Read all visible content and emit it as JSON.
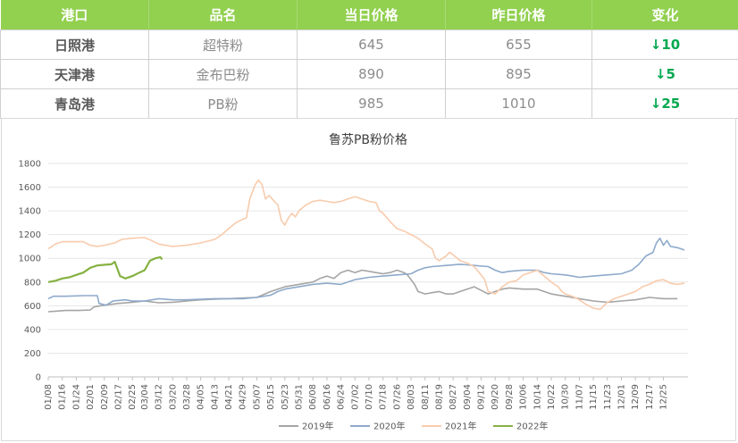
{
  "table": {
    "headers": [
      "港口",
      "品名",
      "当日价格",
      "昨日价格",
      "变化"
    ],
    "rows": [
      {
        "port": "日照港",
        "product": "超特粉",
        "today": "645",
        "yesterday": "655",
        "change": "↓10"
      },
      {
        "port": "天津港",
        "product": "金布巴粉",
        "today": "890",
        "yesterday": "895",
        "change": "↓5"
      },
      {
        "port": "青岛港",
        "product": "PB粉",
        "today": "985",
        "yesterday": "1010",
        "change": "↓25"
      }
    ]
  },
  "chart_data": {
    "type": "line",
    "title": "鲁苏PB粉价格",
    "ylim": [
      0,
      1800
    ],
    "yticks": [
      0,
      200,
      400,
      600,
      800,
      1000,
      1200,
      1400,
      1600,
      1800
    ],
    "xlim": [
      0,
      365
    ],
    "xticks": [
      {
        "label": "01/08",
        "x": 0
      },
      {
        "label": "01/16",
        "x": 8
      },
      {
        "label": "01/24",
        "x": 16
      },
      {
        "label": "02/01",
        "x": 24
      },
      {
        "label": "02/09",
        "x": 32
      },
      {
        "label": "02/17",
        "x": 40
      },
      {
        "label": "02/25",
        "x": 48
      },
      {
        "label": "03/04",
        "x": 55
      },
      {
        "label": "03/12",
        "x": 63
      },
      {
        "label": "03/20",
        "x": 71
      },
      {
        "label": "03/28",
        "x": 79
      },
      {
        "label": "04/05",
        "x": 87
      },
      {
        "label": "04/13",
        "x": 95
      },
      {
        "label": "04/21",
        "x": 103
      },
      {
        "label": "04/29",
        "x": 111
      },
      {
        "label": "05/07",
        "x": 119
      },
      {
        "label": "05/15",
        "x": 127
      },
      {
        "label": "05/23",
        "x": 135
      },
      {
        "label": "05/31",
        "x": 143
      },
      {
        "label": "06/08",
        "x": 151
      },
      {
        "label": "06/16",
        "x": 159
      },
      {
        "label": "06/24",
        "x": 167
      },
      {
        "label": "07/02",
        "x": 175
      },
      {
        "label": "07/10",
        "x": 183
      },
      {
        "label": "07/18",
        "x": 191
      },
      {
        "label": "07/26",
        "x": 199
      },
      {
        "label": "08/03",
        "x": 207
      },
      {
        "label": "08/11",
        "x": 215
      },
      {
        "label": "08/19",
        "x": 223
      },
      {
        "label": "08/27",
        "x": 231
      },
      {
        "label": "09/04",
        "x": 239
      },
      {
        "label": "09/12",
        "x": 247
      },
      {
        "label": "09/20",
        "x": 255
      },
      {
        "label": "09/28",
        "x": 263
      },
      {
        "label": "10/06",
        "x": 271
      },
      {
        "label": "10/14",
        "x": 279
      },
      {
        "label": "10/22",
        "x": 287
      },
      {
        "label": "10/30",
        "x": 295
      },
      {
        "label": "11/07",
        "x": 303
      },
      {
        "label": "11/15",
        "x": 311
      },
      {
        "label": "11/23",
        "x": 319
      },
      {
        "label": "12/01",
        "x": 327
      },
      {
        "label": "12/09",
        "x": 335
      },
      {
        "label": "12/17",
        "x": 343
      },
      {
        "label": "12/25",
        "x": 351
      }
    ],
    "grid": true,
    "legend_position": "bottom",
    "series": [
      {
        "name": "2019年",
        "color": "#a5a5a5",
        "points": [
          [
            0,
            550
          ],
          [
            5,
            555
          ],
          [
            10,
            560
          ],
          [
            18,
            560
          ],
          [
            24,
            565
          ],
          [
            26,
            590
          ],
          [
            30,
            600
          ],
          [
            35,
            610
          ],
          [
            40,
            620
          ],
          [
            48,
            630
          ],
          [
            55,
            640
          ],
          [
            63,
            625
          ],
          [
            71,
            630
          ],
          [
            79,
            640
          ],
          [
            87,
            650
          ],
          [
            95,
            655
          ],
          [
            103,
            660
          ],
          [
            111,
            665
          ],
          [
            119,
            670
          ],
          [
            127,
            720
          ],
          [
            135,
            760
          ],
          [
            143,
            780
          ],
          [
            151,
            800
          ],
          [
            155,
            830
          ],
          [
            159,
            850
          ],
          [
            163,
            830
          ],
          [
            167,
            880
          ],
          [
            171,
            900
          ],
          [
            175,
            880
          ],
          [
            179,
            900
          ],
          [
            183,
            890
          ],
          [
            187,
            880
          ],
          [
            191,
            870
          ],
          [
            195,
            880
          ],
          [
            199,
            900
          ],
          [
            203,
            880
          ],
          [
            205,
            860
          ],
          [
            209,
            780
          ],
          [
            211,
            720
          ],
          [
            215,
            700
          ],
          [
            219,
            710
          ],
          [
            223,
            720
          ],
          [
            227,
            700
          ],
          [
            231,
            700
          ],
          [
            235,
            720
          ],
          [
            239,
            740
          ],
          [
            243,
            760
          ],
          [
            247,
            730
          ],
          [
            251,
            700
          ],
          [
            255,
            720
          ],
          [
            259,
            740
          ],
          [
            263,
            750
          ],
          [
            271,
            740
          ],
          [
            279,
            740
          ],
          [
            283,
            720
          ],
          [
            287,
            700
          ],
          [
            291,
            690
          ],
          [
            295,
            680
          ],
          [
            303,
            660
          ],
          [
            311,
            640
          ],
          [
            319,
            630
          ],
          [
            327,
            640
          ],
          [
            335,
            650
          ],
          [
            343,
            670
          ],
          [
            351,
            660
          ],
          [
            359,
            660
          ]
        ]
      },
      {
        "name": "2020年",
        "color": "#8eaacb",
        "points": [
          [
            0,
            660
          ],
          [
            3,
            680
          ],
          [
            10,
            680
          ],
          [
            20,
            685
          ],
          [
            28,
            685
          ],
          [
            29,
            620
          ],
          [
            33,
            605
          ],
          [
            37,
            640
          ],
          [
            44,
            650
          ],
          [
            48,
            640
          ],
          [
            55,
            640
          ],
          [
            63,
            660
          ],
          [
            71,
            650
          ],
          [
            79,
            650
          ],
          [
            87,
            655
          ],
          [
            95,
            660
          ],
          [
            103,
            660
          ],
          [
            111,
            660
          ],
          [
            119,
            670
          ],
          [
            127,
            690
          ],
          [
            131,
            720
          ],
          [
            135,
            740
          ],
          [
            143,
            760
          ],
          [
            151,
            780
          ],
          [
            159,
            790
          ],
          [
            167,
            780
          ],
          [
            171,
            800
          ],
          [
            175,
            820
          ],
          [
            183,
            840
          ],
          [
            191,
            850
          ],
          [
            199,
            860
          ],
          [
            207,
            870
          ],
          [
            211,
            900
          ],
          [
            215,
            920
          ],
          [
            219,
            930
          ],
          [
            227,
            940
          ],
          [
            235,
            950
          ],
          [
            239,
            945
          ],
          [
            243,
            940
          ],
          [
            251,
            930
          ],
          [
            255,
            900
          ],
          [
            259,
            880
          ],
          [
            263,
            890
          ],
          [
            271,
            900
          ],
          [
            279,
            900
          ],
          [
            283,
            880
          ],
          [
            287,
            870
          ],
          [
            295,
            860
          ],
          [
            299,
            850
          ],
          [
            303,
            840
          ],
          [
            311,
            850
          ],
          [
            319,
            860
          ],
          [
            327,
            870
          ],
          [
            333,
            900
          ],
          [
            337,
            950
          ],
          [
            341,
            1020
          ],
          [
            345,
            1050
          ],
          [
            347,
            1130
          ],
          [
            349,
            1170
          ],
          [
            351,
            1110
          ],
          [
            353,
            1150
          ],
          [
            355,
            1100
          ],
          [
            359,
            1090
          ],
          [
            363,
            1070
          ]
        ]
      },
      {
        "name": "2021年",
        "color": "#f8cbad",
        "points": [
          [
            0,
            1080
          ],
          [
            4,
            1120
          ],
          [
            8,
            1140
          ],
          [
            14,
            1140
          ],
          [
            20,
            1140
          ],
          [
            24,
            1110
          ],
          [
            28,
            1100
          ],
          [
            32,
            1110
          ],
          [
            38,
            1130
          ],
          [
            42,
            1160
          ],
          [
            48,
            1170
          ],
          [
            55,
            1175
          ],
          [
            59,
            1150
          ],
          [
            63,
            1120
          ],
          [
            71,
            1100
          ],
          [
            79,
            1110
          ],
          [
            87,
            1130
          ],
          [
            95,
            1160
          ],
          [
            99,
            1200
          ],
          [
            103,
            1250
          ],
          [
            107,
            1300
          ],
          [
            111,
            1330
          ],
          [
            113,
            1340
          ],
          [
            115,
            1500
          ],
          [
            118,
            1620
          ],
          [
            120,
            1660
          ],
          [
            122,
            1620
          ],
          [
            124,
            1500
          ],
          [
            126,
            1530
          ],
          [
            129,
            1480
          ],
          [
            131,
            1450
          ],
          [
            133,
            1320
          ],
          [
            135,
            1280
          ],
          [
            137,
            1340
          ],
          [
            139,
            1380
          ],
          [
            141,
            1350
          ],
          [
            143,
            1400
          ],
          [
            147,
            1450
          ],
          [
            151,
            1480
          ],
          [
            155,
            1490
          ],
          [
            159,
            1480
          ],
          [
            163,
            1470
          ],
          [
            167,
            1480
          ],
          [
            171,
            1500
          ],
          [
            175,
            1520
          ],
          [
            179,
            1500
          ],
          [
            183,
            1480
          ],
          [
            187,
            1470
          ],
          [
            189,
            1400
          ],
          [
            191,
            1380
          ],
          [
            195,
            1310
          ],
          [
            199,
            1250
          ],
          [
            203,
            1230
          ],
          [
            207,
            1200
          ],
          [
            211,
            1170
          ],
          [
            215,
            1120
          ],
          [
            219,
            1080
          ],
          [
            221,
            1000
          ],
          [
            223,
            980
          ],
          [
            227,
            1020
          ],
          [
            229,
            1050
          ],
          [
            231,
            1030
          ],
          [
            235,
            980
          ],
          [
            239,
            960
          ],
          [
            243,
            930
          ],
          [
            247,
            860
          ],
          [
            249,
            820
          ],
          [
            251,
            720
          ],
          [
            255,
            700
          ],
          [
            259,
            760
          ],
          [
            263,
            800
          ],
          [
            267,
            810
          ],
          [
            271,
            860
          ],
          [
            275,
            880
          ],
          [
            279,
            900
          ],
          [
            283,
            850
          ],
          [
            287,
            800
          ],
          [
            291,
            760
          ],
          [
            293,
            720
          ],
          [
            295,
            700
          ],
          [
            299,
            680
          ],
          [
            303,
            650
          ],
          [
            307,
            610
          ],
          [
            311,
            580
          ],
          [
            315,
            570
          ],
          [
            319,
            630
          ],
          [
            323,
            660
          ],
          [
            327,
            680
          ],
          [
            331,
            700
          ],
          [
            335,
            720
          ],
          [
            339,
            760
          ],
          [
            343,
            780
          ],
          [
            347,
            810
          ],
          [
            351,
            820
          ],
          [
            355,
            790
          ],
          [
            359,
            780
          ],
          [
            363,
            790
          ]
        ]
      },
      {
        "name": "2022年",
        "color": "#85b141",
        "points": [
          [
            0,
            800
          ],
          [
            4,
            810
          ],
          [
            8,
            830
          ],
          [
            12,
            840
          ],
          [
            16,
            860
          ],
          [
            20,
            880
          ],
          [
            24,
            920
          ],
          [
            28,
            940
          ],
          [
            32,
            945
          ],
          [
            36,
            950
          ],
          [
            38,
            970
          ],
          [
            41,
            850
          ],
          [
            44,
            830
          ],
          [
            48,
            850
          ],
          [
            52,
            880
          ],
          [
            55,
            900
          ],
          [
            58,
            980
          ],
          [
            61,
            1000
          ],
          [
            64,
            1010
          ],
          [
            65,
            990
          ]
        ]
      }
    ]
  }
}
